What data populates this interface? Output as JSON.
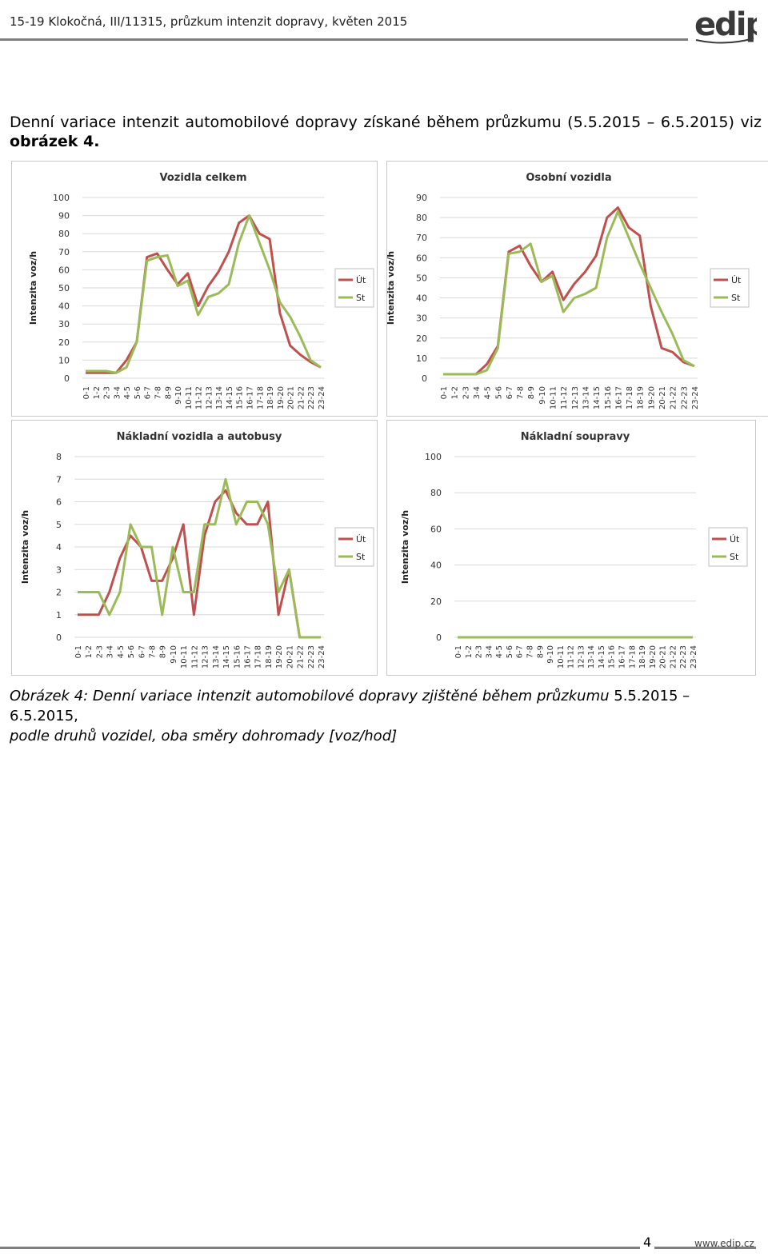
{
  "header": {
    "title": "15-19 Klokočná, III/11315, průzkum intenzit dopravy, květen 2015",
    "logo_text": "edip"
  },
  "intro": {
    "line1": "Denní variace intenzit automobilové dopravy získané během průzkumu (5.5.2015 – 6.5.2015) viz",
    "line2": "obrázek 4."
  },
  "caption": {
    "italic_a": "Obrázek 4: Denní variace intenzit automobilové dopravy zjištěné během průzkumu",
    "dates": " 5.5.2015 – 6.5.2015,",
    "line2": "podle druhů vozidel, oba směry dohromady [voz/hod]"
  },
  "footer": {
    "page": "4",
    "url": "www.edip.cz"
  },
  "colors": {
    "ut": "#c0504d",
    "st": "#9bbb59",
    "grid": "#d9d9d9"
  },
  "chart_data": [
    {
      "type": "line",
      "title": "Vozidla celkem",
      "ylabel": "Intenzita voz/h",
      "ylim": [
        0,
        100
      ],
      "yticks": [
        0,
        10,
        20,
        30,
        40,
        50,
        60,
        70,
        80,
        90,
        100
      ],
      "legend": "right",
      "categories": [
        "0-1",
        "1-2",
        "2-3",
        "3-4",
        "4-5",
        "5-6",
        "6-7",
        "7-8",
        "8-9",
        "9-10",
        "10-11",
        "11-12",
        "12-13",
        "13-14",
        "14-15",
        "15-16",
        "16-17",
        "17-18",
        "18-19",
        "19-20",
        "20-21",
        "21-22",
        "22-23",
        "23-24"
      ],
      "series": [
        {
          "name": "Út",
          "values": [
            3,
            3,
            3,
            3,
            10,
            20,
            67,
            69,
            60,
            52,
            58,
            40,
            51,
            59,
            70,
            86,
            90,
            80,
            77,
            36,
            18,
            13,
            9,
            6
          ]
        },
        {
          "name": "St",
          "values": [
            4,
            4,
            4,
            3,
            6,
            20,
            65,
            67,
            68,
            51,
            54,
            35,
            45,
            47,
            52,
            75,
            90,
            75,
            60,
            42,
            34,
            23,
            10,
            6
          ]
        }
      ]
    },
    {
      "type": "line",
      "title": "Osobní vozidla",
      "ylabel": "Intenzita voz/h",
      "ylim": [
        0,
        90
      ],
      "yticks": [
        0,
        10,
        20,
        30,
        40,
        50,
        60,
        70,
        80,
        90
      ],
      "legend": "right",
      "categories": [
        "0-1",
        "1-2",
        "2-3",
        "3-4",
        "4-5",
        "5-6",
        "6-7",
        "7-8",
        "8-9",
        "9-10",
        "10-11",
        "11-12",
        "12-13",
        "13-14",
        "14-15",
        "15-16",
        "16-17",
        "17-18",
        "18-19",
        "19-20",
        "20-21",
        "21-22",
        "22-23",
        "23-24"
      ],
      "series": [
        {
          "name": "Út",
          "values": [
            2,
            2,
            2,
            2,
            7,
            16,
            63,
            66,
            56,
            48,
            53,
            39,
            47,
            53,
            61,
            80,
            85,
            75,
            71,
            36,
            15,
            13,
            8,
            6
          ]
        },
        {
          "name": "St",
          "values": [
            2,
            2,
            2,
            2,
            4,
            15,
            62,
            63,
            67,
            48,
            51,
            33,
            40,
            42,
            45,
            70,
            83,
            70,
            57,
            45,
            33,
            22,
            9,
            6
          ]
        }
      ]
    },
    {
      "type": "line",
      "title": "Nákladní vozidla a autobusy",
      "ylabel": "Intenzita voz/h",
      "ylim": [
        0,
        8
      ],
      "yticks": [
        0,
        1,
        2,
        3,
        4,
        5,
        6,
        7,
        8
      ],
      "legend": "right",
      "categories": [
        "0-1",
        "1-2",
        "2-3",
        "3-4",
        "4-5",
        "5-6",
        "6-7",
        "7-8",
        "8-9",
        "9-10",
        "10-11",
        "11-12",
        "12-13",
        "13-14",
        "14-15",
        "15-16",
        "16-17",
        "17-18",
        "18-19",
        "19-20",
        "20-21",
        "21-22",
        "22-23",
        "23-24"
      ],
      "series": [
        {
          "name": "Út",
          "values": [
            1,
            1,
            1,
            2,
            3.5,
            4.5,
            4,
            2.5,
            2.5,
            3.5,
            5,
            1,
            4.5,
            6,
            6.5,
            5.5,
            5,
            5,
            6,
            1,
            3,
            0,
            0,
            0
          ]
        },
        {
          "name": "St",
          "values": [
            2,
            2,
            2,
            1,
            2,
            5,
            4,
            4,
            1,
            4,
            2,
            2,
            5,
            5,
            7,
            5,
            6,
            6,
            5,
            2,
            3,
            0,
            0,
            0
          ]
        }
      ]
    },
    {
      "type": "line",
      "title": "Nákladní soupravy",
      "ylabel": "Intenzita voz/h",
      "ylim": [
        0,
        100
      ],
      "yticks": [
        0,
        20,
        40,
        60,
        80,
        100
      ],
      "legend": "right",
      "categories": [
        "0-1",
        "1-2",
        "2-3",
        "3-4",
        "4-5",
        "5-6",
        "6-7",
        "7-8",
        "8-9",
        "9-10",
        "10-11",
        "11-12",
        "12-13",
        "13-14",
        "14-15",
        "15-16",
        "16-17",
        "17-18",
        "18-19",
        "19-20",
        "20-21",
        "21-22",
        "22-23",
        "23-24"
      ],
      "series": [
        {
          "name": "Út",
          "values": [
            0,
            0,
            0,
            0,
            0,
            0,
            0,
            0,
            0,
            0,
            0,
            0,
            0,
            0,
            0,
            0,
            0,
            0,
            0,
            0,
            0,
            0,
            0,
            0
          ]
        },
        {
          "name": "St",
          "values": [
            0,
            0,
            0,
            0,
            0,
            0,
            0,
            0,
            0,
            0,
            0,
            0,
            0,
            0,
            0,
            0,
            0,
            0,
            0,
            0,
            0,
            0,
            0,
            0
          ]
        }
      ]
    }
  ]
}
